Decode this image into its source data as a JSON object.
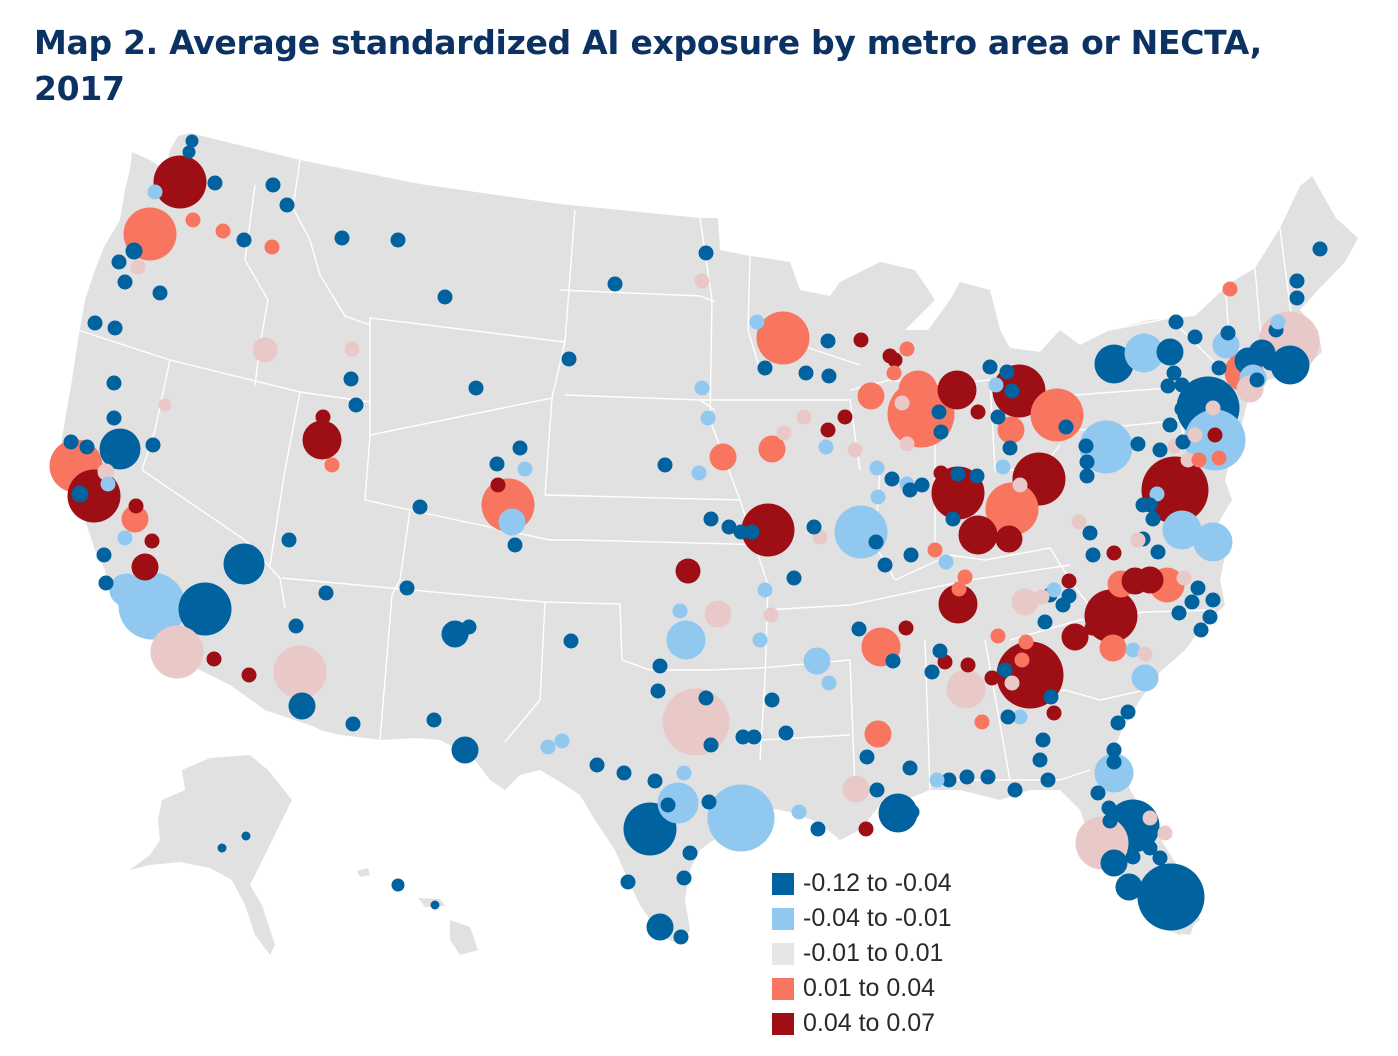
{
  "title": "Map 2. Average standardized AI exposure by metro area or NECTA, 2017",
  "title_lines": [
    "Map 2. Average standardized AI exposure by metro area or NECTA,",
    "2017"
  ],
  "colors": {
    "land": "#e1e1e1",
    "border": "#ffffff",
    "title": "#0c3264"
  },
  "legend": [
    {
      "label": "-0.12 to -0.04",
      "color": "#00629e",
      "category": "c1"
    },
    {
      "label": "-0.04 to -0.01",
      "color": "#91c8f0",
      "category": "c2"
    },
    {
      "label": "-0.01 to 0.01",
      "color": "#e6e6e6",
      "category": "c3"
    },
    {
      "label": "0.01 to 0.04",
      "color": "#f8755f",
      "category": "c4"
    },
    {
      "label": "0.04 to 0.07",
      "color": "#9e0e15",
      "category": "c5"
    }
  ],
  "bubble_colors": {
    "c1": "#00629e",
    "c2": "#91c8f0",
    "c3": "#e9c8c8",
    "c4": "#f8755f",
    "c5": "#9e0e15"
  }
}
